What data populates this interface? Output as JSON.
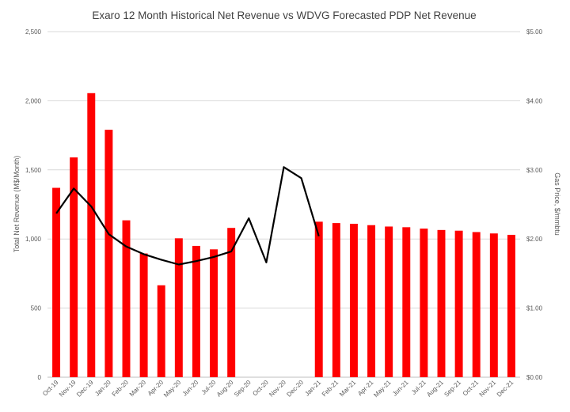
{
  "chart_data": {
    "type": "bar",
    "title": "Exaro 12 Month Historical Net Revenue vs WDVG Forecasted PDP Net Revenue",
    "ylabel": "Total Net Revenue (M$/Month)",
    "y2label": "Gas Price, $/mmbtu",
    "ylim": [
      0,
      2500
    ],
    "y2lim": [
      0,
      5
    ],
    "yticks": [
      "0",
      "500",
      "1,000",
      "1,500",
      "2,000",
      "2,500"
    ],
    "y2ticks": [
      "$0.00",
      "$1.00",
      "$2.00",
      "$3.00",
      "$4.00",
      "$5.00"
    ],
    "grid": true,
    "categories": [
      "Oct-19",
      "Nov-19",
      "Dec-19",
      "Jan-20",
      "Feb-20",
      "Mar-20",
      "Apr-20",
      "May-20",
      "Jun-20",
      "Jul-20",
      "Aug-20",
      "Sep-20",
      "Oct-20",
      "Nov-20",
      "Dec-20",
      "Jan-21",
      "Feb-21",
      "Mar-21",
      "Apr-21",
      "May-21",
      "Jun-21",
      "Jul-21",
      "Aug-21",
      "Sep-21",
      "Oct-21",
      "Nov-21",
      "Dec-21"
    ],
    "series": [
      {
        "type": "bar",
        "axis": "left",
        "color": "#ff0000",
        "values": [
          1370,
          1590,
          2055,
          1790,
          1135,
          895,
          665,
          1005,
          950,
          925,
          1080,
          null,
          null,
          null,
          null,
          1125,
          1115,
          1110,
          1100,
          1090,
          1085,
          1075,
          1065,
          1060,
          1050,
          1040,
          1030
        ]
      },
      {
        "type": "line",
        "axis": "right",
        "color": "#000000",
        "values": [
          2.37,
          2.73,
          2.47,
          2.07,
          1.89,
          1.78,
          1.7,
          1.63,
          1.68,
          1.74,
          1.82,
          2.3,
          1.66,
          3.04,
          2.88,
          2.04,
          null,
          null,
          null,
          null,
          null,
          null,
          null,
          null,
          null,
          null,
          null
        ]
      }
    ]
  }
}
